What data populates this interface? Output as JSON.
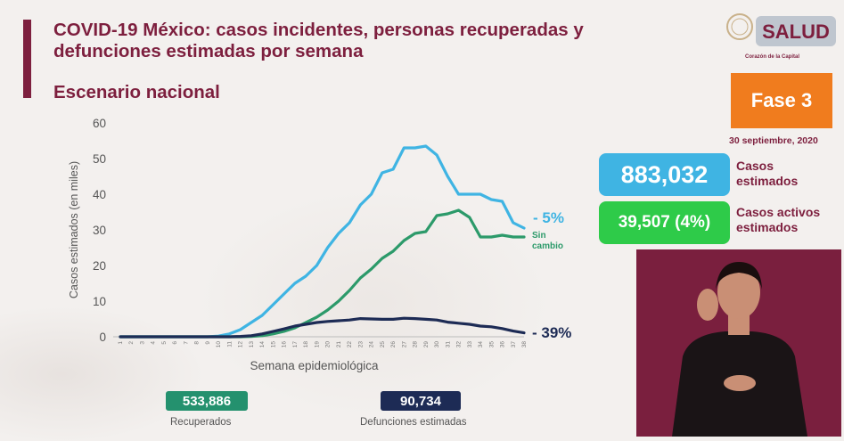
{
  "header": {
    "title": "COVID-19 México: casos incidentes, personas recuperadas y defunciones estimadas por semana",
    "subtitle": "Escenario nacional"
  },
  "logo": {
    "text": "SALUD",
    "caption": "Corazón de la Capital"
  },
  "phase": {
    "label": "Fase 3",
    "color": "#f07c1e"
  },
  "date": "30 septiembre, 2020",
  "kpis": {
    "cases": {
      "value": "883,032",
      "label_line1": "Casos",
      "label_line2": "estimados",
      "color": "#3fb4e3"
    },
    "active": {
      "value": "39,507 (4%)",
      "label_line1": "Casos activos",
      "label_line2": "estimados",
      "color": "#2ecb49"
    }
  },
  "annotations": {
    "cases": "- 5%",
    "recovered_line1": "Sin",
    "recovered_line2": "cambio",
    "deaths": "- 39%"
  },
  "stats": {
    "recovered": {
      "value": "533,886",
      "label": "Recuperados",
      "color": "#24916e"
    },
    "deaths": {
      "value": "90,734",
      "label": "Defunciones estimadas",
      "color": "#1d2b55"
    }
  },
  "chart_data": {
    "type": "line",
    "xlabel": "Semana epidemiológica",
    "ylabel": "Casos estimados (en miles)",
    "ylim": [
      0,
      60
    ],
    "yticks": [
      0,
      10,
      20,
      30,
      40,
      50,
      60
    ],
    "grid": false,
    "x": [
      1,
      2,
      3,
      4,
      5,
      6,
      7,
      8,
      9,
      10,
      11,
      12,
      13,
      14,
      15,
      16,
      17,
      18,
      19,
      20,
      21,
      22,
      23,
      24,
      25,
      26,
      27,
      28,
      29,
      30,
      31,
      32,
      33,
      34,
      35,
      36,
      37,
      38
    ],
    "series": [
      {
        "key": "cases",
        "color": "#3fb4e3",
        "values": [
          0,
          0,
          0,
          0,
          0,
          0,
          0,
          0,
          0,
          0.2,
          0.8,
          2,
          4,
          6,
          9,
          12,
          15,
          17,
          20,
          25,
          29,
          32,
          37,
          40,
          46,
          47,
          53,
          53,
          53.5,
          51,
          45,
          40,
          40,
          40,
          38.5,
          38,
          32,
          30.5
        ]
      },
      {
        "key": "recovered",
        "color": "#2c9a6a",
        "values": [
          0,
          0,
          0,
          0,
          0,
          0,
          0,
          0,
          0,
          0,
          0,
          0,
          0.1,
          0.3,
          0.8,
          1.5,
          2.5,
          4,
          5.5,
          7.5,
          10,
          13,
          16.5,
          19,
          22,
          24,
          27,
          29,
          29.5,
          34,
          34.5,
          35.5,
          33.5,
          28,
          28,
          28.5,
          28,
          28
        ]
      },
      {
        "key": "deaths",
        "color": "#1d2b55",
        "values": [
          0,
          0,
          0,
          0,
          0,
          0,
          0,
          0,
          0,
          0,
          0,
          0.1,
          0.3,
          0.8,
          1.5,
          2.2,
          3,
          3.5,
          4,
          4.3,
          4.5,
          4.7,
          5.1,
          5.0,
          4.9,
          4.9,
          5.2,
          5.1,
          4.9,
          4.7,
          4.1,
          3.8,
          3.5,
          3.0,
          2.8,
          2.3,
          1.6,
          1.1
        ]
      }
    ]
  }
}
